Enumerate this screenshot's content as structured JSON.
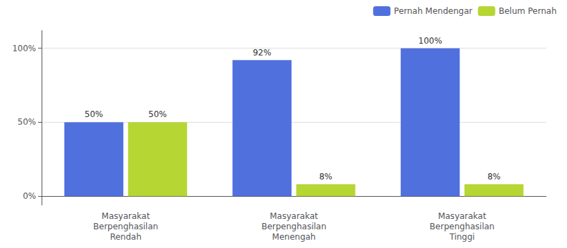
{
  "chart_data": {
    "type": "bar",
    "categories": [
      "Masyarakat\nBerpenghasilan\nRendah",
      "Masyarakat\nBerpenghasilan\nMenengah",
      "Masyarakat\nBerpenghasilan\nTinggi"
    ],
    "series": [
      {
        "name": "Pernah Mendengar",
        "values": [
          50,
          92,
          100
        ],
        "value_labels": [
          "50%",
          "92%",
          "100%"
        ]
      },
      {
        "name": "Belum Pernah",
        "values": [
          50,
          8,
          8
        ],
        "value_labels": [
          "50%",
          "8%",
          "8%"
        ]
      }
    ],
    "ylim": [
      -6,
      112
    ],
    "yticks": [
      {
        "value": 0,
        "label": "0%"
      },
      {
        "value": 50,
        "label": "50%"
      },
      {
        "value": 100,
        "label": "100%"
      }
    ],
    "grid": true,
    "legend": "upper right",
    "data_labels": true
  }
}
